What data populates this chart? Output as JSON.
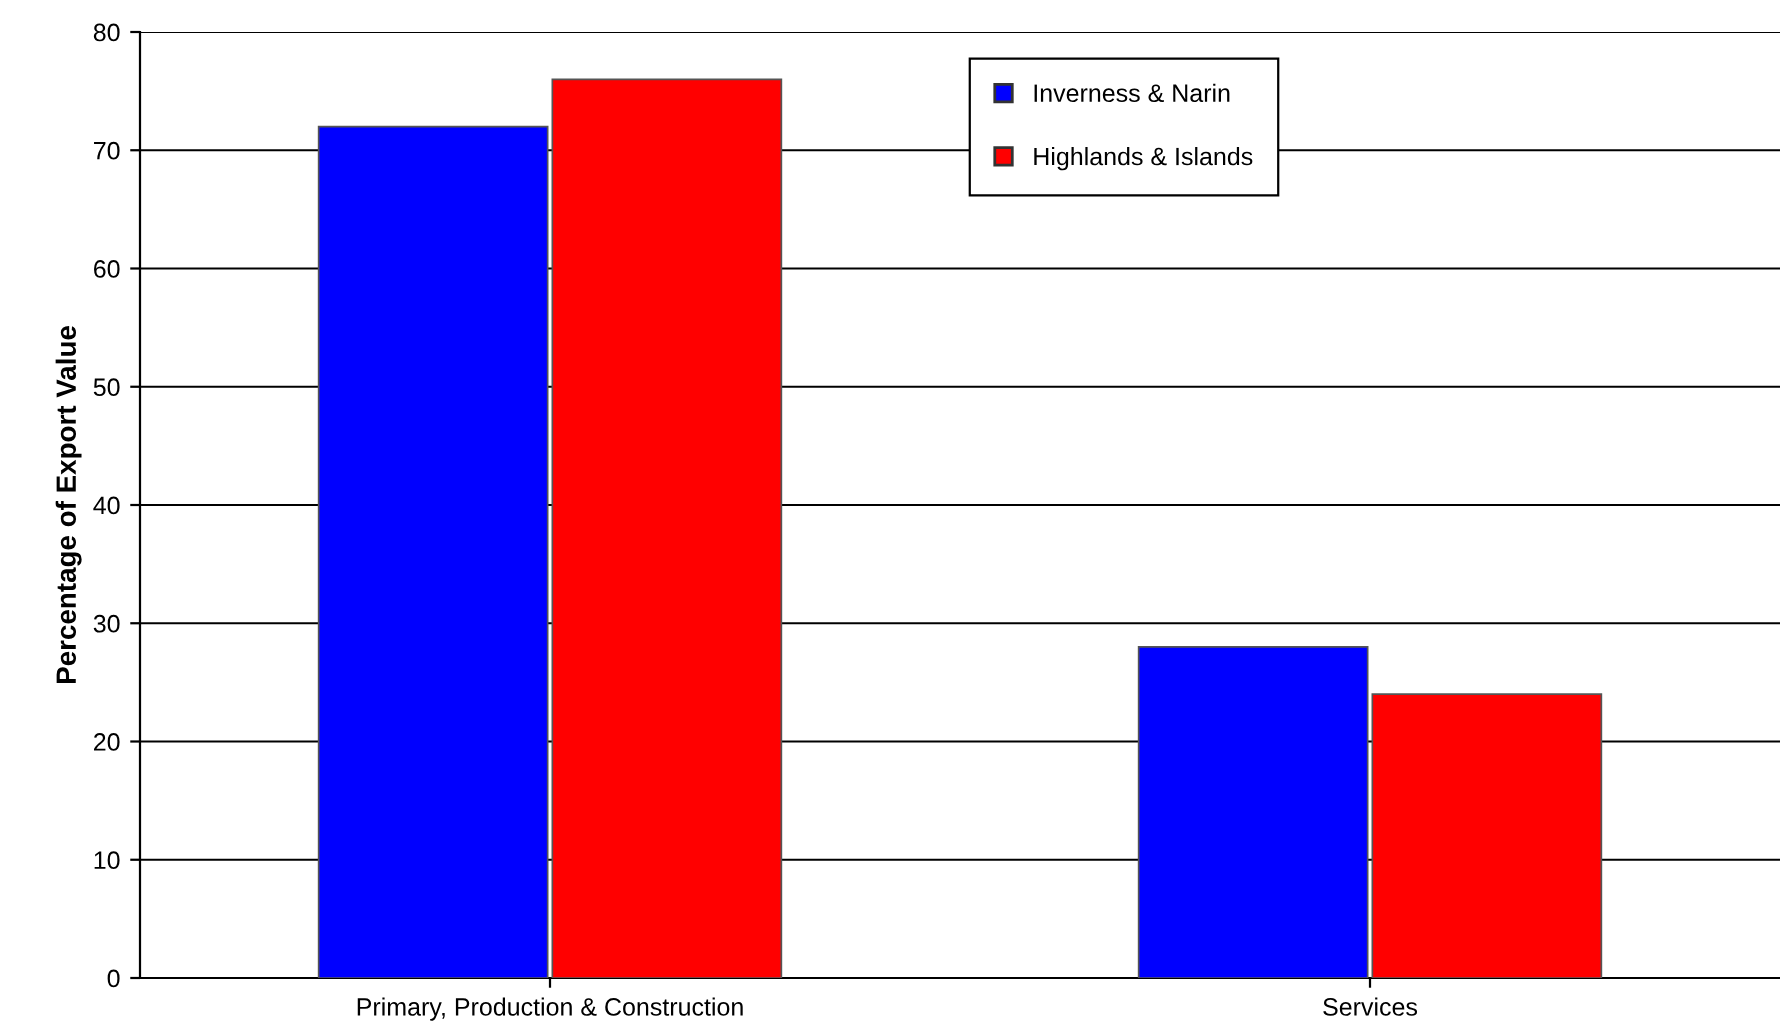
{
  "chart_data": {
    "type": "bar",
    "ylabel": "Percentage of Export Value",
    "categories": [
      "Primary, Production & Construction",
      "Services"
    ],
    "series": [
      {
        "name": "Inverness & Narin",
        "color": "#0000ff",
        "values": [
          72,
          28
        ]
      },
      {
        "name": "Highlands & Islands",
        "color": "#ff0000",
        "values": [
          76,
          24
        ]
      }
    ],
    "ylim": [
      0,
      80
    ],
    "yticks": [
      0,
      10,
      20,
      30,
      40,
      50,
      60,
      70,
      80
    ],
    "grid": "y",
    "legend": "top"
  }
}
